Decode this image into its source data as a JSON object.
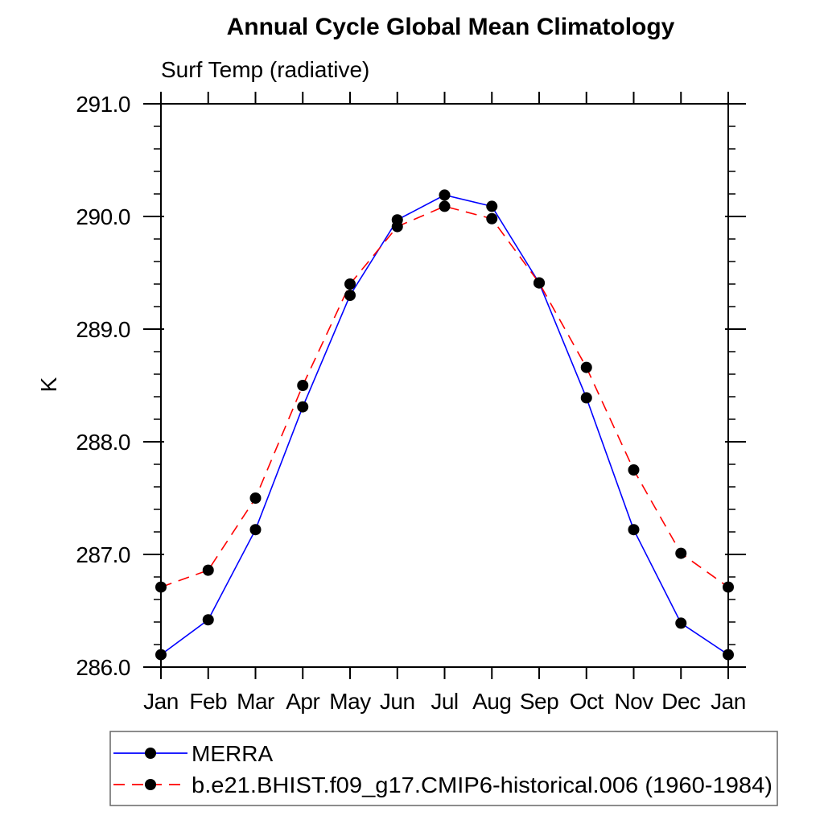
{
  "page": {
    "background": "#ffffff",
    "frame_color": "#000000"
  },
  "chart_data": {
    "type": "line",
    "title": "Annual Cycle Global Mean Climatology",
    "subtitle": "Surf Temp (radiative)",
    "ylabel": "K",
    "xlabel": "",
    "categories": [
      "Jan",
      "Feb",
      "Mar",
      "Apr",
      "May",
      "Jun",
      "Jul",
      "Aug",
      "Sep",
      "Oct",
      "Nov",
      "Dec",
      "Jan"
    ],
    "ylim": [
      286.0,
      291.0
    ],
    "ytick_interval": 1.0,
    "yminor_interval": 0.2,
    "ytick_labels": [
      "286.0",
      "287.0",
      "288.0",
      "289.0",
      "290.0",
      "291.0"
    ],
    "grid": false,
    "legend_position": "bottom-left-outside-box",
    "marker": "filled-circle",
    "marker_color": "#000000",
    "series": [
      {
        "name": "MERRA",
        "color": "#0000ff",
        "line_style": "solid",
        "values": [
          286.11,
          286.42,
          287.22,
          288.31,
          289.3,
          289.97,
          290.19,
          290.09,
          289.41,
          288.39,
          287.22,
          286.39,
          286.11
        ]
      },
      {
        "name": "b.e21.BHIST.f09_g17.CMIP6-historical.006 (1960-1984)",
        "color": "#ff0000",
        "line_style": "dashed",
        "values": [
          286.71,
          286.86,
          287.5,
          288.5,
          289.4,
          289.91,
          290.09,
          289.98,
          289.41,
          288.66,
          287.75,
          287.01,
          286.71
        ]
      }
    ]
  }
}
